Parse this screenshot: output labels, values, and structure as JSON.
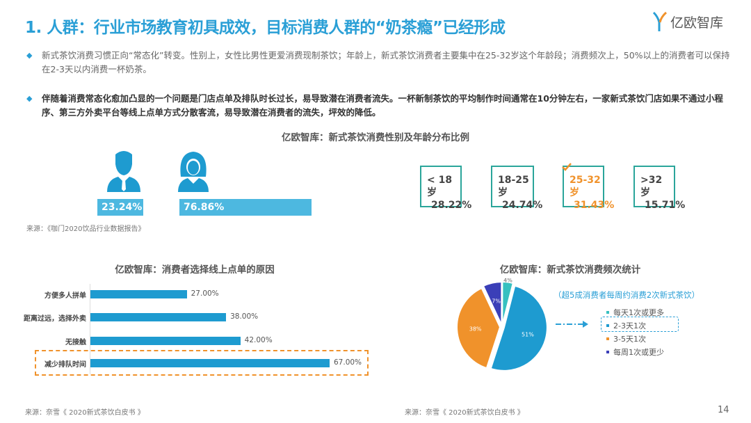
{
  "header": {
    "title": "1. 人群：行业市场教育初具成效，目标消费人群的“奶茶瘾”已经形成",
    "logo_text": "亿欧智库"
  },
  "bullets": [
    {
      "text": "新式茶饮消费习惯正向“常态化”转变。性别上，女性比男性更爱消费现制茶饮；年龄上，新式茶饮消费者主要集中在25-32岁这个年龄段；消费频次上，50%以上的消费者可以保持在2-3天以内消费一杯奶茶。"
    },
    {
      "text": "伴随着消费常态化愈加凸显的一个问题是门店点单及排队时长过长，易导致潜在消费者流失。一杯新制茶饮的平均制作时间通常在10分钟左右，一家新式茶饮门店如果不通过小程序、第三方外卖平台等线上点单方式分散客流，易导致潜在消费者的流失，坪效的降低。"
    }
  ],
  "demographics": {
    "title": "亿欧智库：新式茶饮消费性别及年龄分布比例",
    "gender": [
      {
        "icon": "male-icon",
        "value": "23.24%"
      },
      {
        "icon": "female-icon",
        "value": "76.86%"
      }
    ],
    "ages": [
      {
        "label": "< 18 岁",
        "value": "28.22%"
      },
      {
        "label": "18-25 岁",
        "value": "24.74%"
      },
      {
        "label": "25-32 岁",
        "value": "31.43%",
        "highlight": true
      },
      {
        "label": ">32 岁",
        "value": "15.71%"
      }
    ],
    "source": "来源：《咖门2020饮品行业数据报告》"
  },
  "colors": {
    "accent": "#2a9fd6",
    "bar": "#1e9bd0",
    "orange": "#f0922b",
    "teal": "#2aa59a",
    "navy": "#3b3fb8",
    "pie_teal": "#37c0c0"
  },
  "chart_data": [
    {
      "type": "bar",
      "orientation": "horizontal",
      "title": "亿欧智库：消费者选择线上点单的原因",
      "categories": [
        "方便多人拼单",
        "距离过远，选择外卖",
        "无接触",
        "减少排队时间"
      ],
      "values": [
        27,
        38,
        42,
        67
      ],
      "labels": [
        "27.00%",
        "38.00%",
        "42.00%",
        "67.00%"
      ],
      "highlight": "减少排队时间",
      "unit": "%"
    },
    {
      "type": "pie",
      "title": "亿欧智库：新式茶饮消费频次统计",
      "annotation": "（超5成消费者每周约消费2次新式茶饮）",
      "slices": [
        {
          "name": "每天1次或更多",
          "value": 4,
          "label": "4%",
          "color": "#37c0c0"
        },
        {
          "name": "2-3天1次",
          "value": 51,
          "label": "51%",
          "color": "#1e9bd0",
          "highlight": true
        },
        {
          "name": "3-5天1次",
          "value": 38,
          "label": "38%",
          "color": "#f0922b"
        },
        {
          "name": "每周1次或更少",
          "value": 7,
          "label": "7%",
          "color": "#3b3fb8"
        }
      ]
    }
  ],
  "footer": {
    "source_left": "来源：奈雪《 2020新式茶饮白皮书 》",
    "source_right": "来源：奈雪《 2020新式茶饮白皮书 》",
    "page": "14"
  }
}
